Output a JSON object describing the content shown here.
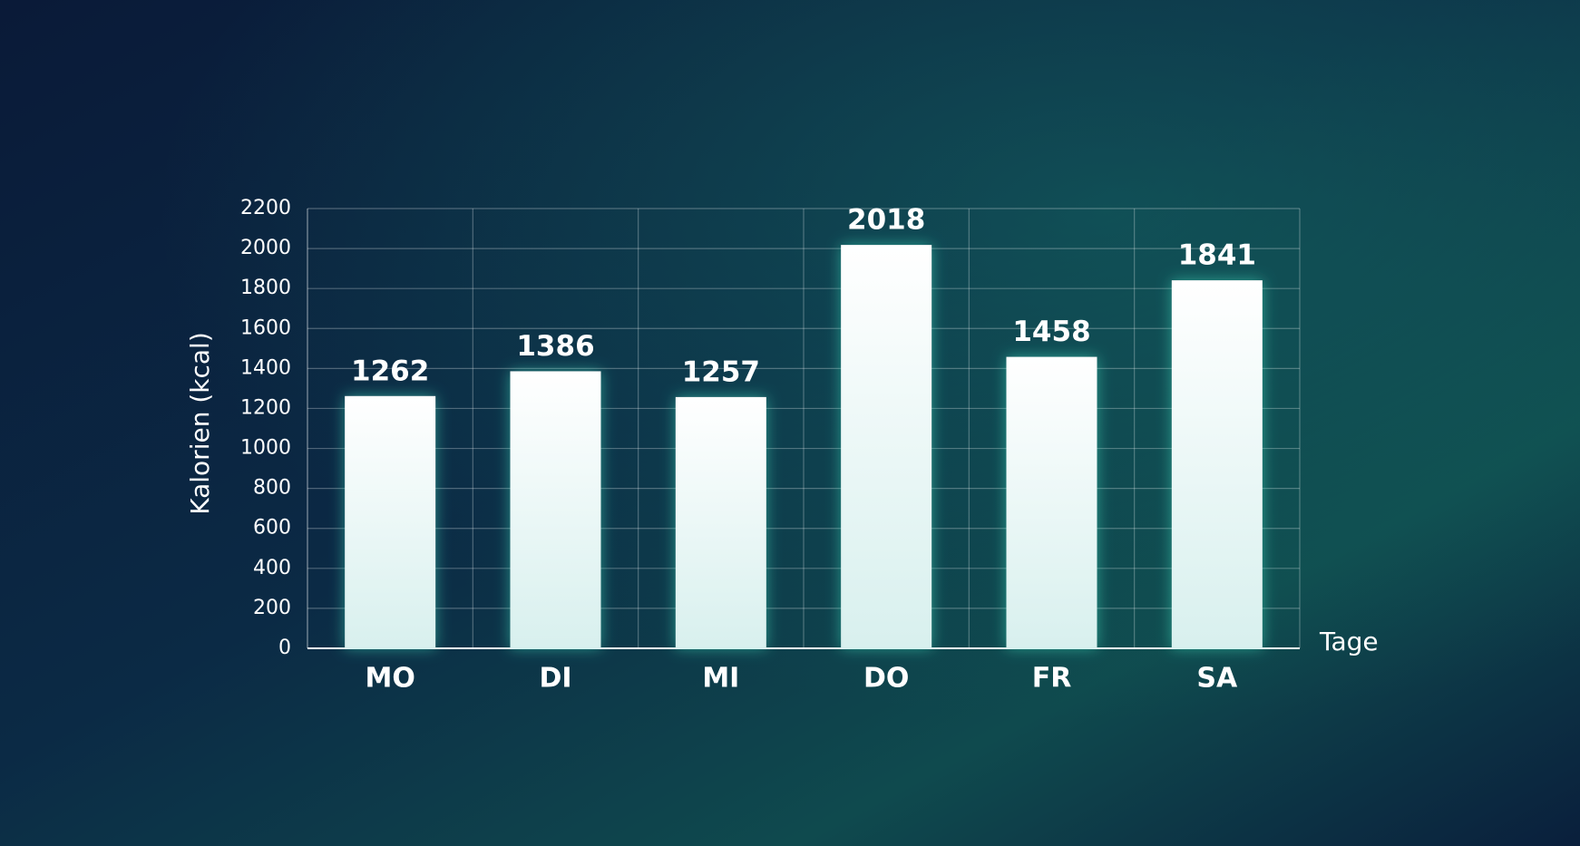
{
  "chart_data": {
    "type": "bar",
    "categories": [
      "MO",
      "DI",
      "MI",
      "DO",
      "FR",
      "SA"
    ],
    "values": [
      1262,
      1386,
      1257,
      2018,
      1458,
      1841
    ],
    "color": "#eef8f7",
    "y_label": "Kalorien (kcal)",
    "x_label": "Tage",
    "ylim": [
      0,
      2200
    ],
    "yticks": [
      0,
      200,
      400,
      600,
      800,
      1000,
      1200,
      1400,
      1600,
      1800,
      2000,
      2200
    ],
    "grid": true
  }
}
